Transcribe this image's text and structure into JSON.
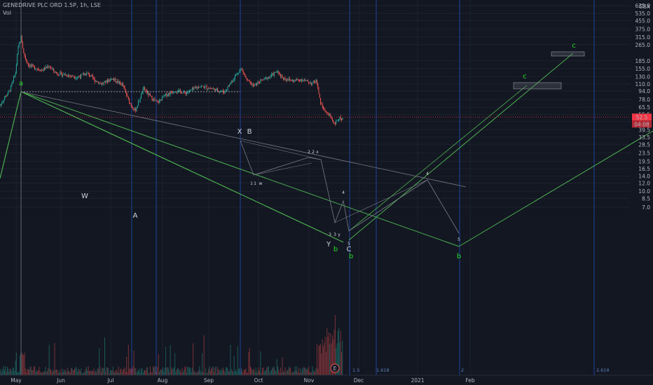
{
  "header": {
    "symbol": "GENEDRIVE PLC ORD 1.5P, 1h, LSE",
    "volume_label": "Vol"
  },
  "colors": {
    "background": "#131722",
    "grid": "#1e222d",
    "fib_line": "#2962ff",
    "green": "#4caf50",
    "wave_green": "#22dd22",
    "gray_line": "#787b86",
    "up_candle": "#26a69a",
    "down_candle": "#ef5350",
    "current_price": "#f23645",
    "text": "#d1d4dc"
  },
  "chart_data": {
    "type": "candlestick",
    "y_scale": "log",
    "ylim": [
      6.5,
      1200
    ],
    "x_ticks": [
      "May",
      "Jun",
      "Jul",
      "Aug",
      "Sep",
      "Oct",
      "Nov",
      "Dec",
      "2021",
      "Feb"
    ],
    "y_ticks": [
      7.0,
      8.5,
      10.0,
      12.0,
      14.0,
      16.5,
      19.5,
      23.5,
      28.5,
      33.5,
      39.5,
      47.5,
      55.5,
      65.5,
      78.0,
      94.0,
      110.0,
      130.0,
      155.0,
      185.0,
      265.0,
      315.0,
      375.0,
      455.0,
      535.0,
      635.0,
      760.0,
      920.0,
      1080.0
    ],
    "currency": "GBX",
    "current_price": {
      "value": "52.5",
      "countdown": "04:08"
    },
    "fib_time_labels": [
      "1.5",
      "1.618",
      "2",
      "2.618"
    ],
    "event_badge": "E",
    "wave_labels": [
      {
        "text": "a",
        "color": "green"
      },
      {
        "text": "W",
        "color": "white"
      },
      {
        "text": "A",
        "color": "white"
      },
      {
        "text": "X",
        "color": "white"
      },
      {
        "text": "B",
        "color": "white"
      },
      {
        "text": "Y",
        "color": "white"
      },
      {
        "text": "b",
        "color": "green"
      },
      {
        "text": "C",
        "color": "white"
      },
      {
        "text": "b",
        "color": "green"
      },
      {
        "text": "b",
        "color": "green"
      },
      {
        "text": "c",
        "color": "green"
      },
      {
        "text": "c",
        "color": "green"
      }
    ],
    "sub_wave_labels": [
      "1",
      "1",
      "w",
      "2",
      "2",
      "x",
      "3",
      "3",
      "y",
      "4",
      "5",
      "4",
      "5"
    ]
  }
}
